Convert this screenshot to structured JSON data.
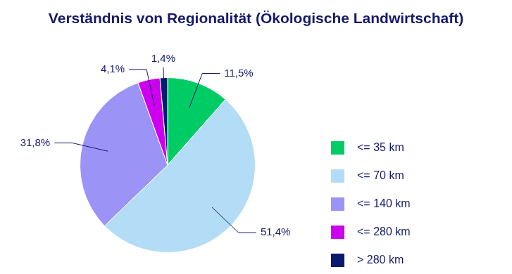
{
  "chart_data": {
    "type": "pie",
    "title": "Verständnis von Regionalität (Ökologische Landwirtschaft)",
    "categories": [
      "<= 35 km",
      "<= 70 km",
      "<= 140 km",
      "<= 280 km",
      "> 280 km"
    ],
    "values": [
      11.5,
      51.4,
      31.8,
      4.1,
      1.4
    ],
    "value_labels": [
      "11,5%",
      "51,4%",
      "31,8%",
      "4,1%",
      "1,4%"
    ],
    "colors": [
      "#00cc66",
      "#b3dcf7",
      "#9b93f5",
      "#cc00ee",
      "#0a1a6e"
    ],
    "legend": "right",
    "data_labels": true
  }
}
